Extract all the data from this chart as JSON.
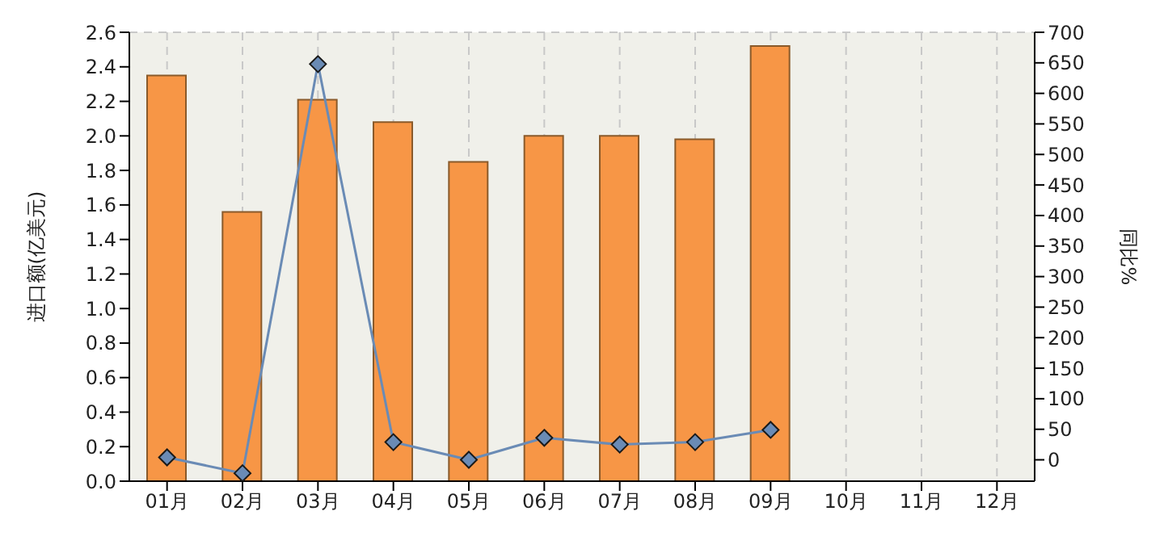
{
  "chart_data": {
    "type": "bar",
    "ylabel": "进口额(亿美元)",
    "y2label": "同比%",
    "categories": [
      "01月",
      "02月",
      "03月",
      "04月",
      "05月",
      "06月",
      "07月",
      "08月",
      "09月",
      "10月",
      "11月",
      "12月"
    ],
    "series": [
      {
        "color": "#f79646",
        "values": [
          2.35,
          1.56,
          2.21,
          2.08,
          1.85,
          2.0,
          2.0,
          1.98,
          2.52,
          null,
          null,
          null
        ]
      },
      {
        "type": "line",
        "axis": "y2",
        "color": "#6a8bb5",
        "marker": "diamond",
        "values": [
          4,
          -22,
          648,
          29,
          0,
          36,
          25,
          29,
          49,
          null,
          null,
          null
        ]
      }
    ],
    "ylim": [
      0,
      2.6
    ],
    "yticks": [
      {
        "value": 0,
        "label": "0.0"
      },
      0.2,
      0.4,
      0.6,
      0.8,
      {
        "value": 1,
        "label": "1.0"
      },
      1.2,
      1.4,
      1.6,
      1.8,
      {
        "value": 2,
        "label": "2.0"
      },
      2.2,
      2.4,
      2.6
    ],
    "y2lim": [
      -35,
      700
    ],
    "y2ticks": [
      0,
      50,
      100,
      150,
      200,
      250,
      300,
      350,
      400,
      450,
      500,
      550,
      600,
      650,
      700
    ],
    "grid": true
  }
}
